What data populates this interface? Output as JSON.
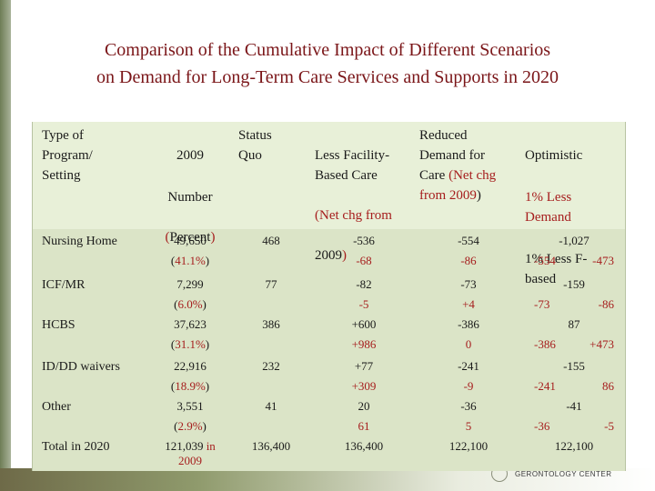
{
  "title": {
    "line1": "Comparison of the Cumulative Impact of Different Scenarios",
    "line2": "on Demand for Long-Term Care Services and Supports in 2020"
  },
  "headers": {
    "col1": "Type of\nProgram/\nSetting",
    "col2_a": "2009",
    "col2_b": "Number",
    "col2_c_paren1": "(",
    "col2_c": "Percent",
    "col2_c_paren2": ")",
    "col3": "Status\nQuo",
    "col4_a": "Less Facility-\nBased Care",
    "col4_b_paren1": "(",
    "col4_b": "Net chg from",
    "col4_c": "2009",
    "col4_c_paren2": ")",
    "col5_a": "Reduced\nDemand for\nCare ",
    "col5_b_paren1": "(",
    "col5_b": "Net chg\nfrom 2009",
    "col5_b_paren2": ")",
    "col6_a": "Optimistic",
    "col6_b": "1% Less\nDemand",
    "col6_c": "1% Less F-\nbased"
  },
  "rows": [
    {
      "label": "Nursing Home",
      "num": "49,650",
      "pct_open": "(",
      "pct": "41.1%",
      "pct_close": ")",
      "sq": "468",
      "lf_a": "-536",
      "lf_b": "-68",
      "rd_a": "-554",
      "rd_b": "-86",
      "op_a": "-1,027",
      "op_b1": "-554",
      "op_b2": "-473"
    },
    {
      "label": "ICF/MR",
      "num": "7,299",
      "pct_open": "(",
      "pct": "6.0%",
      "pct_close": ")",
      "sq": "77",
      "lf_a": "-82",
      "lf_b": "-5",
      "rd_a": "-73",
      "rd_b": "+4",
      "op_a": "-159",
      "op_b1": "-73",
      "op_b2": "-86"
    },
    {
      "label": "HCBS",
      "num": "37,623",
      "pct_open": "(",
      "pct": "31.1%",
      "pct_close": ")",
      "sq": "386",
      "lf_a": "+600",
      "lf_b": "+986",
      "rd_a": "-386",
      "rd_b": "0",
      "op_a": "87",
      "op_b1": "-386",
      "op_b2": "+473"
    },
    {
      "label": "ID/DD waivers",
      "num": "22,916",
      "pct_open": "(",
      "pct": "18.9%",
      "pct_close": ")",
      "sq": "232",
      "lf_a": "+77",
      "lf_b": "+309",
      "rd_a": "-241",
      "rd_b": "-9",
      "op_a": "-155",
      "op_b1": "-241",
      "op_b2": "86"
    },
    {
      "label": "Other",
      "num": "3,551",
      "pct_open": "(",
      "pct": "2.9%",
      "pct_close": ")",
      "sq": "41",
      "lf_a": "20",
      "lf_b": "61",
      "rd_a": "-36",
      "rd_b": "5",
      "op_a": "-41",
      "op_b1": "-36",
      "op_b2": "-5"
    }
  ],
  "total": {
    "label": "Total in 2020",
    "num": "121,039",
    "in": "in",
    "year": "2009",
    "sq": "136,400",
    "lf": "136,400",
    "rd": "122,100",
    "op": "122,100"
  },
  "logo": {
    "text": "GERONTOLOGY CENTER"
  }
}
